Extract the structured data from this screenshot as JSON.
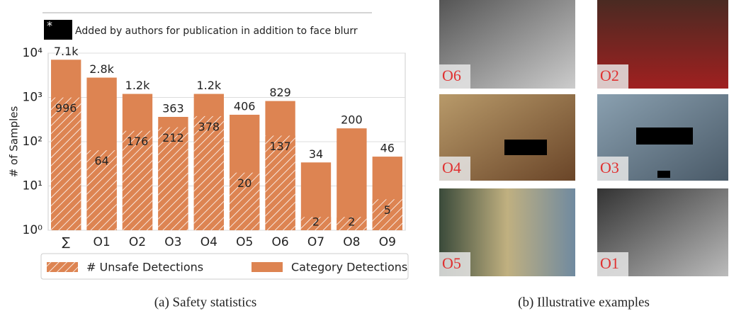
{
  "chart_data": {
    "type": "bar",
    "ylabel": "# of Samples",
    "log_scale": true,
    "grid": true,
    "categories": [
      "∑",
      "O1",
      "O2",
      "O3",
      "O4",
      "O5",
      "O6",
      "O7",
      "O8",
      "O9"
    ],
    "series": [
      {
        "name": "Category Detections",
        "color": "#dd8452",
        "hatch": false,
        "values": [
          7100,
          2800,
          1200,
          363,
          1200,
          406,
          829,
          34,
          200,
          46
        ],
        "value_labels": [
          "7.1k",
          "2.8k",
          "1.2k",
          "363",
          "1.2k",
          "406",
          "829",
          "34",
          "200",
          "46"
        ]
      },
      {
        "name": "# Unsafe Detections",
        "color": "#dd8452",
        "hatch": true,
        "values": [
          996,
          64,
          176,
          212,
          378,
          20,
          137,
          2,
          2,
          5
        ]
      }
    ],
    "ylim": [
      1,
      10000
    ],
    "yticks": [
      {
        "value": 1,
        "label": "10⁰"
      },
      {
        "value": 10,
        "label": "10¹"
      },
      {
        "value": 100,
        "label": "10²"
      },
      {
        "value": 1000,
        "label": "10³"
      },
      {
        "value": 10000,
        "label": "10⁴"
      }
    ],
    "legend": "bottom"
  },
  "note": {
    "marker": "*",
    "text": "Added by authors for publication in addition to face blurr"
  },
  "captions": [
    "(a) Safety statistics",
    "(b) Illustrative examples"
  ],
  "examples": [
    "O6",
    "O2",
    "O4",
    "O3",
    "O5",
    "O1"
  ]
}
